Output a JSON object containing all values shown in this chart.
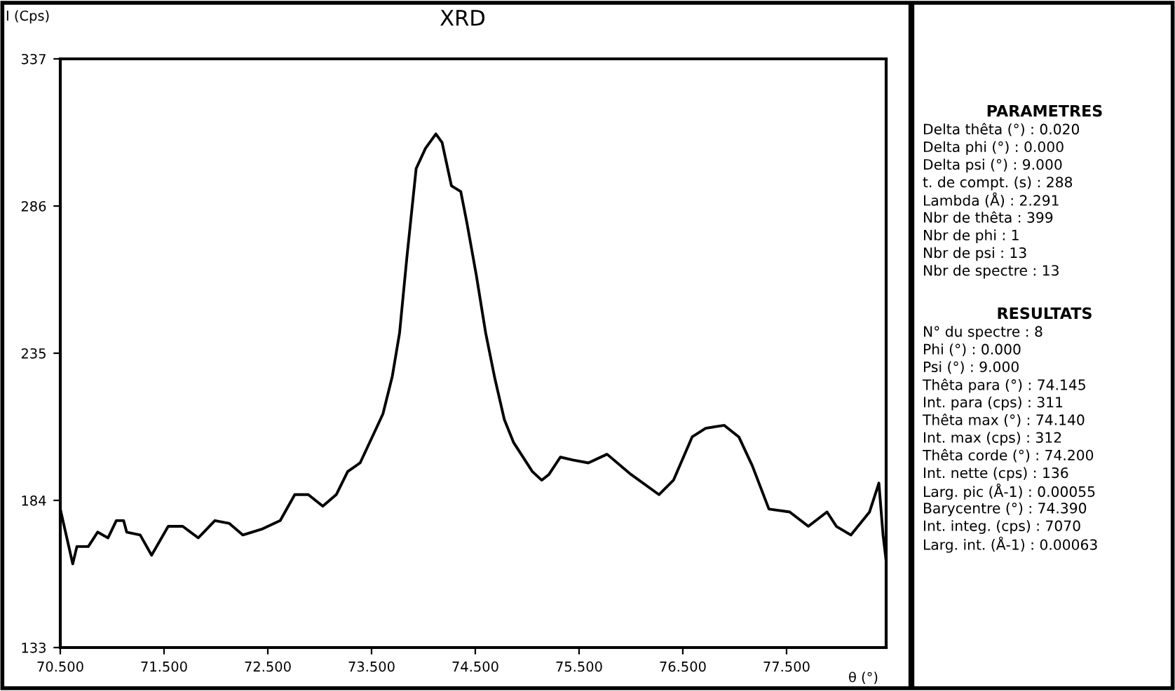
{
  "chart_data": [
    {
      "type": "line",
      "title": "XRD",
      "ylabel": "I (Cps)",
      "xlabel": "θ (°)",
      "color": "#000000",
      "x": [
        70.5,
        70.62,
        70.66,
        70.77,
        70.86,
        70.96,
        71.04,
        71.11,
        71.14,
        71.27,
        71.38,
        71.54,
        71.68,
        71.83,
        71.99,
        72.13,
        72.26,
        72.44,
        72.62,
        72.76,
        72.89,
        73.03,
        73.16,
        73.27,
        73.39,
        73.52,
        73.61,
        73.7,
        73.77,
        73.84,
        73.93,
        74.02,
        74.12,
        74.18,
        74.27,
        74.36,
        74.42,
        74.51,
        74.6,
        74.69,
        74.78,
        74.87,
        75.05,
        75.14,
        75.21,
        75.32,
        75.44,
        75.59,
        75.77,
        76.0,
        76.27,
        76.41,
        76.59,
        76.72,
        76.9,
        77.04,
        77.17,
        77.33,
        77.53,
        77.71,
        77.89,
        77.98,
        78.12,
        78.3,
        78.39,
        78.43,
        78.46
      ],
      "values": [
        181,
        162,
        168,
        168,
        173,
        171,
        177,
        177,
        173,
        172,
        165,
        175,
        175,
        171,
        177,
        176,
        172,
        174,
        177,
        186,
        186,
        182,
        186,
        194,
        197,
        207,
        214,
        227,
        242,
        268,
        299,
        306,
        311,
        308,
        293,
        291,
        280,
        262,
        242,
        226,
        212,
        204,
        194,
        191,
        193,
        199,
        198,
        197,
        200,
        193,
        186,
        191,
        206,
        209,
        210,
        206,
        196,
        181,
        180,
        175,
        180,
        175,
        172,
        180,
        190,
        172,
        163
      ],
      "xlim": [
        70.5,
        78.46
      ],
      "xticks": [
        {
          "value": 70.5,
          "label": "70.500"
        },
        {
          "value": 71.5,
          "label": "71.500"
        },
        {
          "value": 72.5,
          "label": "72.500"
        },
        {
          "value": 73.5,
          "label": "73.500"
        },
        {
          "value": 74.5,
          "label": "74.500"
        },
        {
          "value": 75.5,
          "label": "75.500"
        },
        {
          "value": 76.5,
          "label": "76.500"
        },
        {
          "value": 77.5,
          "label": "77.500"
        }
      ],
      "ylim": [
        133,
        337
      ],
      "yticks": [
        133,
        184,
        235,
        286,
        337
      ],
      "grid": false
    },
    {
      "type": "other",
      "title": "PARAMETRES",
      "annotations": [
        "Delta thêta (°) : 0.020",
        "Delta phi (°) : 0.000",
        "Delta psi (°) : 9.000",
        "t. de compt. (s) : 288",
        "Lambda (Å) : 2.291",
        "Nbr de thêta : 399",
        "Nbr de phi : 1",
        "Nbr de psi : 13",
        "Nbr de spectre : 13"
      ]
    },
    {
      "type": "other",
      "title": "RESULTATS",
      "annotations": [
        "N° du spectre : 8",
        "Phi (°) : 0.000",
        "Psi (°) : 9.000",
        "Thêta para (°) : 74.145",
        "Int. para (cps) : 311",
        "Thêta max (°) : 74.140",
        "Int. max (cps) : 312",
        "Thêta corde (°) : 74.200",
        "Int. nette (cps) : 136",
        "Larg. pic (Å-1) : 0.00055",
        "Barycentre (°) : 74.390",
        "Int. integ. (cps) : 7070",
        "Larg. int. (Å-1) : 0.00063"
      ]
    }
  ]
}
